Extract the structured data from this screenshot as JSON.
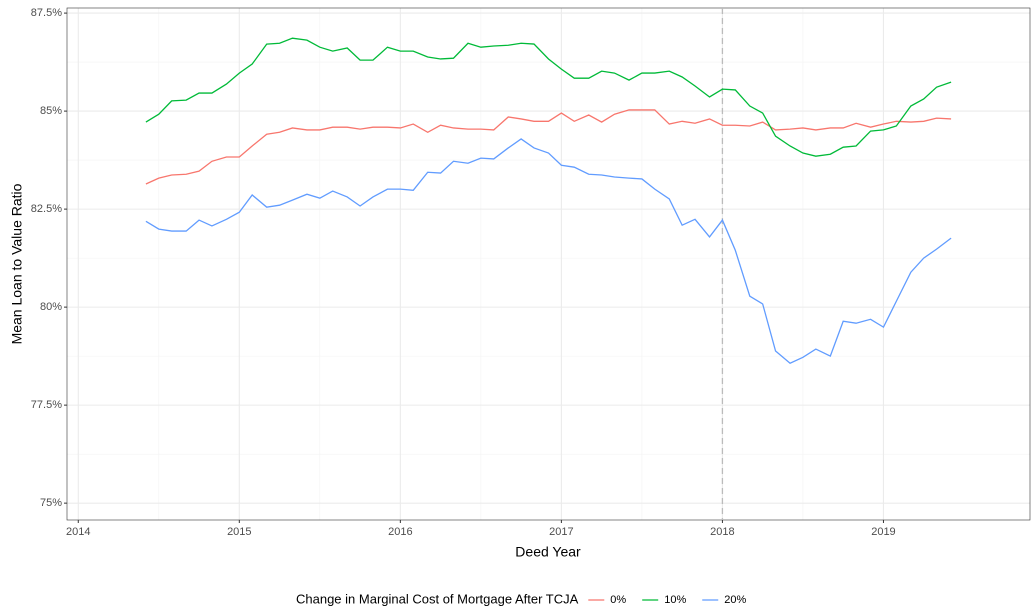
{
  "chart_data": {
    "type": "line",
    "x_label": "Deed Year",
    "y_label": "Mean Loan to Value Ratio",
    "legend_title": "Change in Marginal Cost of Mortgage After TCJA",
    "legend_position": "bottom",
    "grid": true,
    "vline": 2018,
    "xlim": [
      2013.93,
      2019.91
    ],
    "ylim": [
      74.57,
      87.63
    ],
    "xticks": [
      2014,
      2015,
      2016,
      2017,
      2018,
      2019
    ],
    "yticks": [
      {
        "value": 75,
        "label": "75%"
      },
      {
        "value": 77.5,
        "label": "77.5%"
      },
      {
        "value": 80,
        "label": "80%"
      },
      {
        "value": 82.5,
        "label": "82.5%"
      },
      {
        "value": 85,
        "label": "85%"
      },
      {
        "value": 87.5,
        "label": "87.5%"
      }
    ],
    "x": [
      2014.42,
      2014.5,
      2014.58,
      2014.67,
      2014.75,
      2014.83,
      2014.92,
      2015,
      2015.08,
      2015.17,
      2015.25,
      2015.33,
      2015.42,
      2015.5,
      2015.58,
      2015.67,
      2015.75,
      2015.83,
      2015.92,
      2016,
      2016.08,
      2016.17,
      2016.25,
      2016.33,
      2016.42,
      2016.5,
      2016.58,
      2016.67,
      2016.75,
      2016.83,
      2016.92,
      2017,
      2017.08,
      2017.17,
      2017.25,
      2017.33,
      2017.42,
      2017.5,
      2017.58,
      2017.67,
      2017.75,
      2017.83,
      2017.92,
      2018,
      2018.08,
      2018.17,
      2018.25,
      2018.33,
      2018.42,
      2018.5,
      2018.58,
      2018.67,
      2018.75,
      2018.83,
      2018.92,
      2019,
      2019.08,
      2019.17,
      2019.25,
      2019.33,
      2019.42
    ],
    "series": [
      {
        "name": "0%",
        "color": "#F8766D",
        "values": [
          83.14,
          83.29,
          83.37,
          83.39,
          83.47,
          83.72,
          83.83,
          83.83,
          84.11,
          84.41,
          84.46,
          84.57,
          84.52,
          84.52,
          84.59,
          84.59,
          84.54,
          84.59,
          84.59,
          84.57,
          84.67,
          84.46,
          84.64,
          84.57,
          84.54,
          84.54,
          84.52,
          84.85,
          84.8,
          84.74,
          84.74,
          84.95,
          84.74,
          84.9,
          84.72,
          84.92,
          85.03,
          85.03,
          85.03,
          84.67,
          84.74,
          84.69,
          84.8,
          84.64,
          84.64,
          84.62,
          84.72,
          84.52,
          84.54,
          84.57,
          84.52,
          84.57,
          84.57,
          84.69,
          84.59,
          84.67,
          84.74,
          84.72,
          84.74,
          84.82,
          84.8
        ]
      },
      {
        "name": "10%",
        "color": "#00BA38",
        "values": [
          84.72,
          84.92,
          85.26,
          85.28,
          85.46,
          85.46,
          85.69,
          85.97,
          86.2,
          86.71,
          86.73,
          86.86,
          86.81,
          86.63,
          86.53,
          86.61,
          86.3,
          86.3,
          86.63,
          86.53,
          86.53,
          86.38,
          86.33,
          86.35,
          86.73,
          86.63,
          86.66,
          86.68,
          86.73,
          86.71,
          86.33,
          86.07,
          85.84,
          85.84,
          86.02,
          85.97,
          85.79,
          85.97,
          85.97,
          86.02,
          85.87,
          85.64,
          85.36,
          85.56,
          85.54,
          85.13,
          84.95,
          84.36,
          84.11,
          83.93,
          83.85,
          83.9,
          84.08,
          84.11,
          84.49,
          84.52,
          84.62,
          85.13,
          85.31,
          85.61,
          85.74
        ]
      },
      {
        "name": "20%",
        "color": "#619CFF",
        "values": [
          82.19,
          81.99,
          81.94,
          81.94,
          82.22,
          82.07,
          82.24,
          82.42,
          82.86,
          82.55,
          82.6,
          82.73,
          82.88,
          82.78,
          82.96,
          82.81,
          82.58,
          82.81,
          83.01,
          83.01,
          82.98,
          83.44,
          83.42,
          83.72,
          83.67,
          83.8,
          83.78,
          84.06,
          84.29,
          84.06,
          83.93,
          83.62,
          83.57,
          83.39,
          83.37,
          83.32,
          83.29,
          83.27,
          83.01,
          82.76,
          82.09,
          82.24,
          81.79,
          82.22,
          81.45,
          80.28,
          80.08,
          78.88,
          78.57,
          78.72,
          78.93,
          78.75,
          79.64,
          79.59,
          79.69,
          79.49,
          80.15,
          80.89,
          81.25,
          81.48,
          81.76
        ]
      }
    ]
  }
}
